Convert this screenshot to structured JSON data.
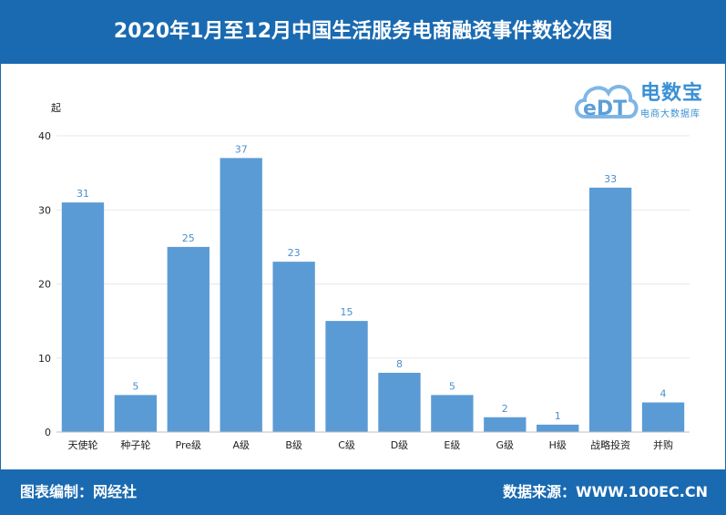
{
  "header": {
    "title": "2020年1月至12月中国生活服务电商融资事件数轮次图"
  },
  "footer": {
    "left": "图表编制：网经社",
    "right": "数据来源：WWW.100EC.CN"
  },
  "logo": {
    "mark": "eDT",
    "name": "电数宝",
    "subtitle": "电商大数据库"
  },
  "colors": {
    "header": "#1a6ab1",
    "bar": "#5b9bd5",
    "label": "#4b8fcc"
  },
  "chart_data": {
    "type": "bar",
    "title": "2020年1月至12月中国生活服务电商融资事件数轮次图",
    "ylabel": "起",
    "xlabel": "",
    "ylim": [
      0,
      40
    ],
    "yticks": [
      0,
      10,
      20,
      30,
      40
    ],
    "grid": true,
    "categories": [
      "天使轮",
      "种子轮",
      "Pre级",
      "A级",
      "B级",
      "C级",
      "D级",
      "E级",
      "G级",
      "H级",
      "战略投资",
      "并购"
    ],
    "values": [
      31,
      5,
      25,
      37,
      23,
      15,
      8,
      5,
      2,
      1,
      33,
      4
    ]
  }
}
